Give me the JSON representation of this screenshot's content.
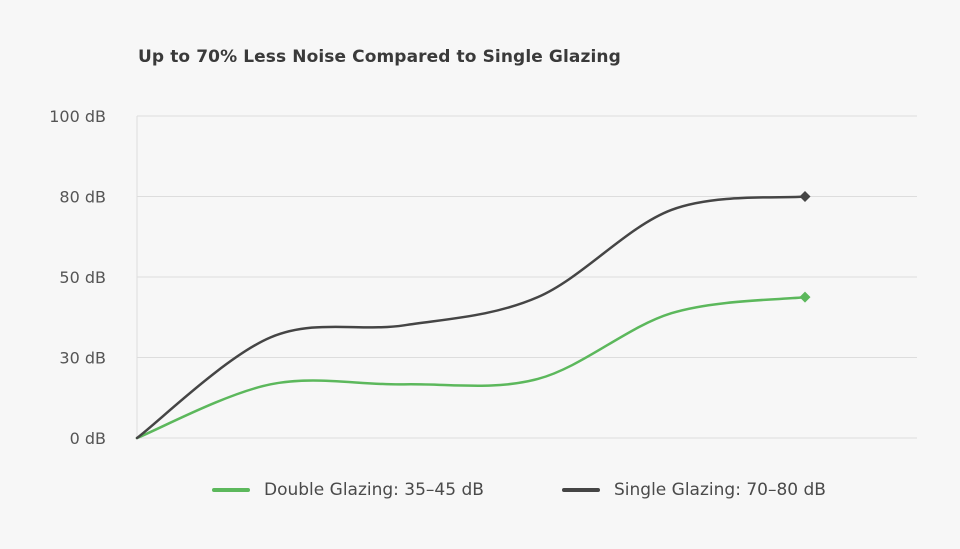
{
  "chart_data": {
    "type": "line",
    "title": "Up to 70% Less Noise Compared to Single Glazing",
    "xlabel": "",
    "ylabel": "",
    "y_ticks": [
      {
        "value": 0,
        "label": "0 dB"
      },
      {
        "value": 30,
        "label": "30 dB"
      },
      {
        "value": 50,
        "label": "50 dB"
      },
      {
        "value": 80,
        "label": "80 dB"
      },
      {
        "value": 100,
        "label": "100 dB"
      }
    ],
    "y_axis_scale": "categorical-spaced (ticks equally spaced)",
    "grid": true,
    "legend_position": "bottom",
    "series": [
      {
        "name": "Double Glazing: 35–45 dB",
        "color": "#5cb85c",
        "x": [
          0,
          1,
          2,
          3,
          4,
          5
        ],
        "y": [
          0,
          20,
          20,
          22,
          41,
          45
        ],
        "end_marker": "diamond"
      },
      {
        "name": "Single Glazing: 70–80 dB",
        "color": "#454545",
        "x": [
          0,
          1,
          2,
          3,
          4,
          5
        ],
        "y": [
          0,
          35,
          38,
          45,
          75,
          80
        ],
        "end_marker": "diamond"
      }
    ]
  }
}
